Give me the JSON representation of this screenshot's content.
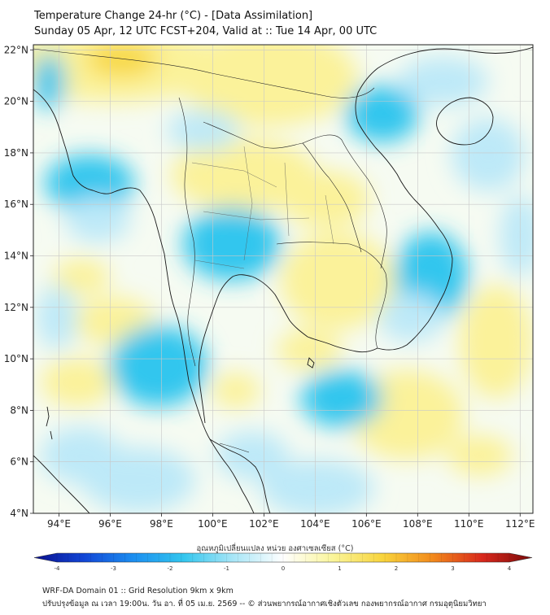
{
  "header": {
    "title": "Temperature Change 24-hr (°C) - [Data Assimilation]",
    "subtitle": "Sunday 05 Apr, 12 UTC FCST+204, Valid at :: Tue 14 Apr, 00 UTC"
  },
  "map": {
    "lon_range": [
      93,
      112.5
    ],
    "lat_range": [
      4,
      22.2
    ],
    "lon_ticks": [
      "94°E",
      "96°E",
      "98°E",
      "100°E",
      "102°E",
      "104°E",
      "106°E",
      "108°E",
      "110°E",
      "112°E"
    ],
    "lat_ticks": [
      "4°N",
      "6°N",
      "8°N",
      "10°N",
      "12°N",
      "14°N",
      "16°N",
      "18°N",
      "20°N",
      "22°N"
    ],
    "field_colors": {
      "cold": "#33c6ee",
      "cool": "#bde9f8",
      "neutral": "#f6fbf2",
      "warm": "#fbf29a",
      "hot": "#f8d842"
    }
  },
  "colorbar": {
    "title": "อุณหภูมิเปลี่ยนแปลง หน่วย องศาเซลเซียส (°C)",
    "ticks": [
      "-4",
      "-3",
      "-2",
      "-1",
      "0",
      "1",
      "2",
      "3",
      "4"
    ],
    "range": [
      -4,
      4
    ],
    "stops": [
      "#0a0f8c",
      "#1246d6",
      "#1c8ff0",
      "#33c6ee",
      "#a8e6f7",
      "#ffffff",
      "#faf59a",
      "#f8d43c",
      "#f28a1c",
      "#d8281c",
      "#7a0a0a"
    ]
  },
  "footer": {
    "line1": "WRF-DA Domain 01 :: Grid Resolution 9km x 9km",
    "line2": "ปรับปรุงข้อมูล ณ เวลา 19:00น. วัน อา. ที่ 05 เม.ย. 2569 -- © ส่วนพยากรณ์อากาศเชิงตัวเลข กองพยากรณ์อากาศ กรมอุตุนิยมวิทยา"
  }
}
